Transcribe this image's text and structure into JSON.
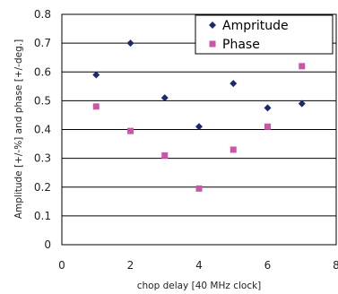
{
  "chart_data": {
    "type": "scatter",
    "xlabel": "chop delay [40 MHz clock]",
    "ylabel": "Amplitude [+/-%] and phase [+/-deg.]",
    "xlim": [
      0,
      8
    ],
    "ylim": [
      0,
      0.8
    ],
    "x_ticks": [
      "0",
      "2",
      "4",
      "6",
      "8"
    ],
    "y_ticks": [
      "0",
      "0.1",
      "0.2",
      "0.3",
      "0.4",
      "0.5",
      "0.6",
      "0.7",
      "0.8"
    ],
    "grid": "horizontal",
    "legend_position": "top-right",
    "series": [
      {
        "name": "Ampritude",
        "marker": "diamond",
        "color": "#1a2a6c",
        "x": [
          1,
          2,
          3,
          4,
          5,
          6,
          7
        ],
        "y": [
          0.59,
          0.7,
          0.51,
          0.41,
          0.56,
          0.475,
          0.49
        ]
      },
      {
        "name": "Phase",
        "marker": "square",
        "color": "#cc55aa",
        "x": [
          1,
          2,
          3,
          4,
          5,
          6,
          7
        ],
        "y": [
          0.48,
          0.395,
          0.31,
          0.195,
          0.33,
          0.41,
          0.62
        ]
      }
    ]
  }
}
